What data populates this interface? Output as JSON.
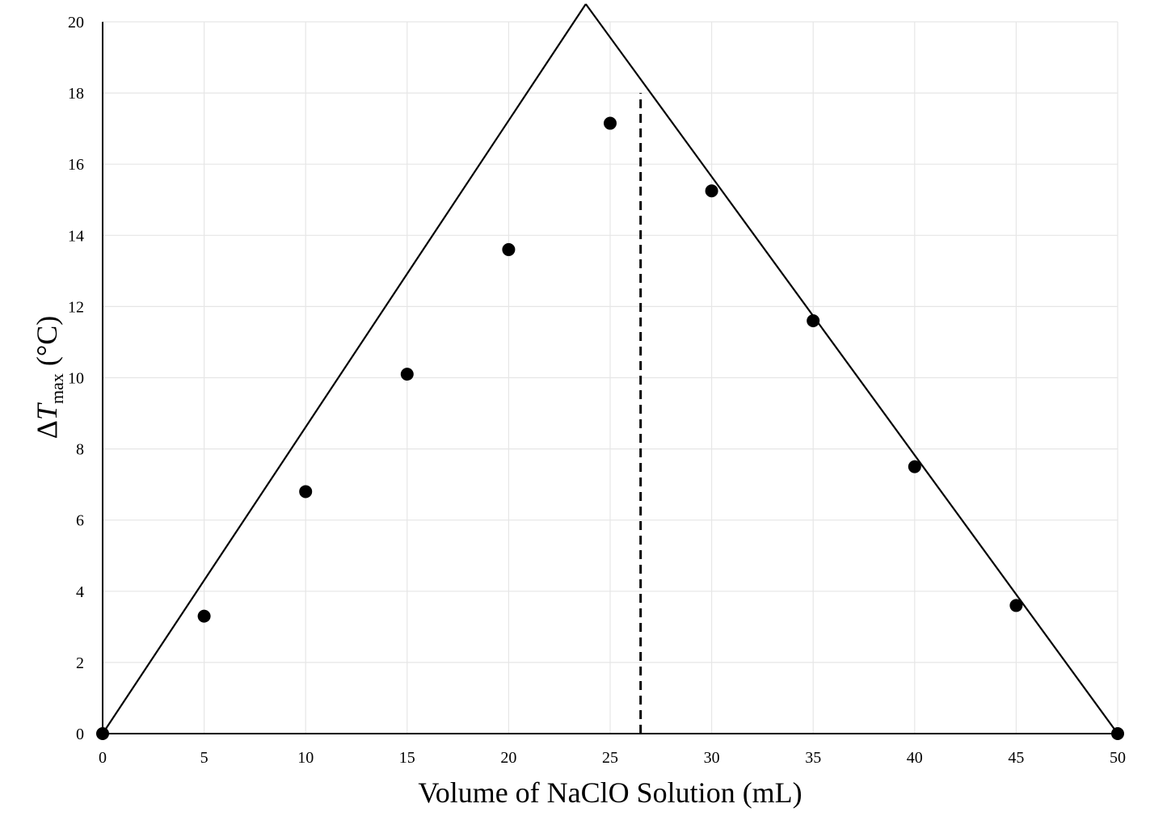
{
  "chart_data": {
    "type": "scatter",
    "title": "",
    "xlabel": "Volume of NaClO Solution (mL)",
    "ylabel": {
      "delta": "Δ",
      "symbol": "T",
      "subscript": "max",
      "unit": " (°C)"
    },
    "xlim": [
      0,
      50
    ],
    "ylim": [
      0,
      20
    ],
    "xticks": [
      0,
      5,
      10,
      15,
      20,
      25,
      30,
      35,
      40,
      45,
      50
    ],
    "yticks": [
      0,
      2,
      4,
      6,
      8,
      10,
      12,
      14,
      16,
      18,
      20
    ],
    "grid": true,
    "legend": "none",
    "colors": {
      "grid": "#e6e6e6",
      "axis": "#000000",
      "marks": "#000000"
    },
    "series": [
      {
        "points": [
          {
            "x": 0,
            "y": 0
          },
          {
            "x": 5,
            "y": 3.3
          },
          {
            "x": 10,
            "y": 6.8
          },
          {
            "x": 15,
            "y": 10.1
          },
          {
            "x": 20,
            "y": 13.6
          },
          {
            "x": 25,
            "y": 17.15
          },
          {
            "x": 30,
            "y": 15.25
          },
          {
            "x": 35,
            "y": 11.6
          },
          {
            "x": 40,
            "y": 7.5
          },
          {
            "x": 45,
            "y": 3.6
          },
          {
            "x": 50,
            "y": 0
          }
        ]
      }
    ],
    "fit_lines": [
      {
        "x": [
          0,
          23.8
        ],
        "y": [
          0,
          20.5
        ]
      },
      {
        "x": [
          23.8,
          50
        ],
        "y": [
          20.5,
          0
        ]
      }
    ],
    "marker_line": {
      "x": 26.5,
      "y_from": 0,
      "y_to": 18,
      "style": "dashed"
    }
  }
}
